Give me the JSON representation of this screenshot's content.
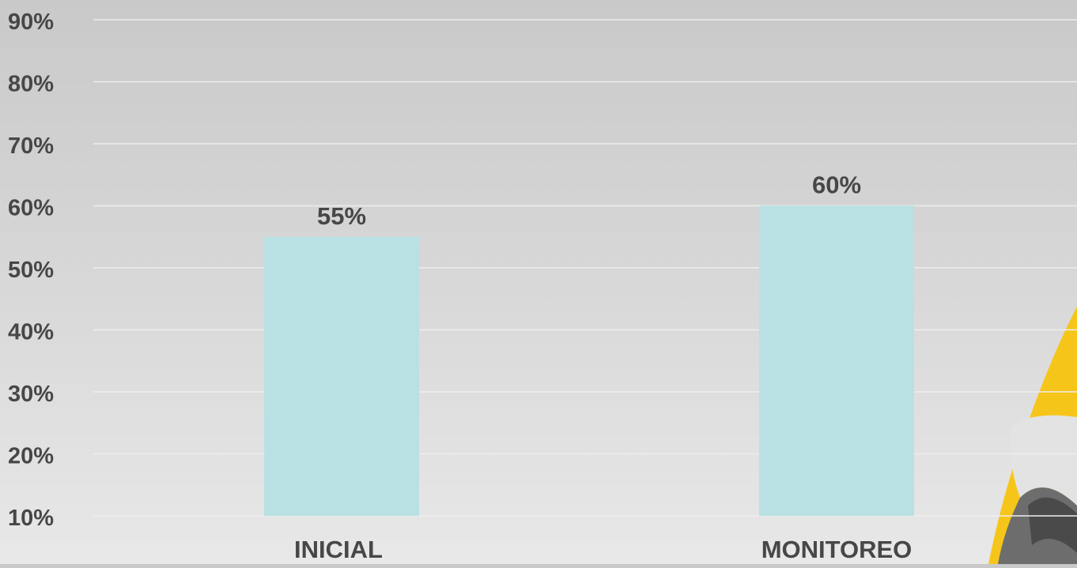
{
  "chart_data": {
    "type": "bar",
    "categories": [
      "INICIAL",
      "MONITOREO"
    ],
    "values": [
      55,
      60
    ],
    "value_labels": [
      "55%",
      "60%"
    ],
    "y_ticks": [
      10,
      20,
      30,
      40,
      50,
      60,
      70,
      80,
      90
    ],
    "y_tick_labels": [
      "10%",
      "20%",
      "30%",
      "40%",
      "50%",
      "60%",
      "70%",
      "80%",
      "90%"
    ],
    "ylim": [
      10,
      90
    ],
    "grid": true,
    "colors": {
      "bar": "#b9e1e4",
      "grid": "#eeeeee",
      "text": "#474747",
      "logo_yellow": "#f6c51a",
      "logo_gray": "#6d6d6d"
    }
  }
}
